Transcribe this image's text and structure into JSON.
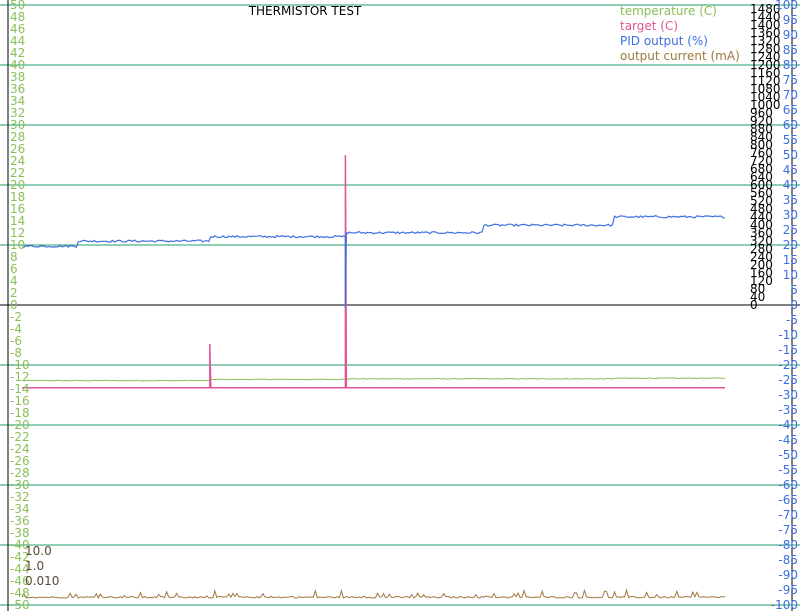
{
  "chart_data": {
    "type": "line",
    "title": "THERMISTOR TEST",
    "legend_position": "top-right",
    "grid": true,
    "colors": {
      "temperature": "#8abf5a",
      "target": "#e0569a",
      "pid": "#3d6fe0",
      "current": "#a07840",
      "grid": "#1fa06a",
      "zero_line": "#000000",
      "current_axis": "#5a4a3a"
    },
    "axes": {
      "temperature_c": {
        "side": "left",
        "range": [
          -50,
          50
        ],
        "ticks": [
          "50",
          "48",
          "46",
          "44",
          "42",
          "40",
          "38",
          "36",
          "34",
          "32",
          "30",
          "28",
          "26",
          "24",
          "22",
          "20",
          "18",
          "16",
          "14",
          "12",
          "10",
          "8",
          "6",
          "4",
          "2",
          "0",
          "-2",
          "-4",
          "-6",
          "-8",
          "-10",
          "-12",
          "-14",
          "-16",
          "-18",
          "-20",
          "-22",
          "-24",
          "-26",
          "-28",
          "-30",
          "-32",
          "-34",
          "-36",
          "-38",
          "-40",
          "-42",
          "-44",
          "-46",
          "-48",
          "-50"
        ]
      },
      "current_ma": {
        "side": "right-inner",
        "range": [
          0,
          1500
        ],
        "ticks": [
          "1480",
          "1440",
          "1400",
          "1360",
          "1320",
          "1280",
          "1240",
          "1200",
          "1160",
          "1120",
          "1080",
          "1040",
          "1000",
          "960",
          "920",
          "880",
          "840",
          "800",
          "760",
          "720",
          "680",
          "640",
          "600",
          "560",
          "520",
          "480",
          "440",
          "400",
          "360",
          "320",
          "280",
          "240",
          "200",
          "160",
          "120",
          "80",
          "40",
          "0"
        ]
      },
      "pid_percent": {
        "side": "right",
        "range": [
          -100,
          100
        ],
        "ticks": [
          "100",
          "95",
          "90",
          "85",
          "80",
          "75",
          "70",
          "65",
          "60",
          "55",
          "50",
          "45",
          "40",
          "35",
          "30",
          "25",
          "20",
          "15",
          "10",
          "5",
          "0",
          "-5",
          "-10",
          "-15",
          "-20",
          "-25",
          "-30",
          "-35",
          "-40",
          "-45",
          "-50",
          "-55",
          "-60",
          "-65",
          "-70",
          "-75",
          "-80",
          "-85",
          "-90",
          "-95",
          "-100"
        ]
      },
      "log_scale_labels": [
        "10.0",
        "1.0",
        "0.010"
      ]
    },
    "series": [
      {
        "name": "temperature (C)",
        "axis": "temperature_c",
        "x_range": [
          0,
          700
        ],
        "baseline": -12.6,
        "steps": [
          [
            0,
            -12.6
          ],
          [
            187,
            -12.4
          ],
          [
            320,
            -12.3
          ],
          [
            460,
            -12.3
          ],
          [
            590,
            -12.2
          ]
        ],
        "noise": 0.12
      },
      {
        "name": "target (C)",
        "axis": "temperature_c",
        "x_range": [
          0,
          700
        ],
        "baseline": -13.8,
        "spikes": [
          {
            "x": 187,
            "value": -6.5
          },
          {
            "x": 322,
            "value": 25
          }
        ]
      },
      {
        "name": "PID output (%)",
        "axis": "pid_percent",
        "x_range": [
          0,
          700
        ],
        "steps": [
          [
            0,
            19.6
          ],
          [
            55,
            21.3
          ],
          [
            187,
            22.8
          ],
          [
            322,
            24.1
          ],
          [
            460,
            26.6
          ],
          [
            590,
            29.4
          ]
        ],
        "noise": 0.7,
        "drops": [
          {
            "x": 187,
            "value": -10
          },
          {
            "x": 322,
            "value": -1
          }
        ]
      },
      {
        "name": "output current (mA)",
        "axis": "current_ma",
        "x_range": [
          0,
          700
        ],
        "baseline": 1.5,
        "noise_max": 8
      }
    ]
  }
}
